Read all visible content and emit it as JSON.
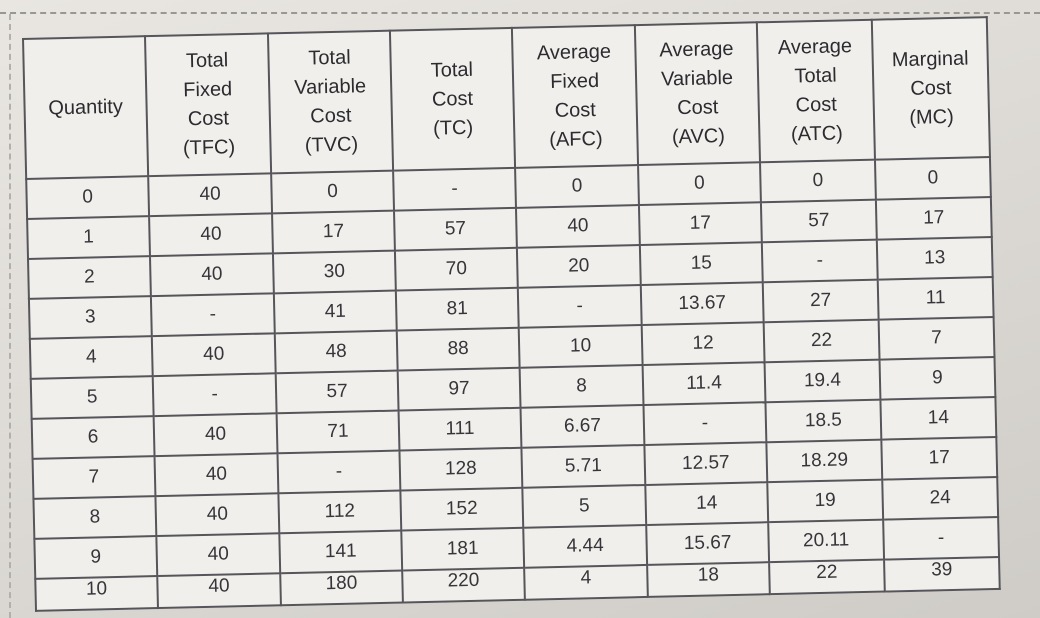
{
  "table": {
    "headers": [
      [
        "Quantity"
      ],
      [
        "Total",
        "Fixed",
        "Cost",
        "(TFC)"
      ],
      [
        "Total",
        "Variable",
        "Cost",
        "(TVC)"
      ],
      [
        "Total",
        "Cost",
        "(TC)"
      ],
      [
        "Average",
        "Fixed",
        "Cost",
        "(AFC)"
      ],
      [
        "Average",
        "Variable",
        "Cost",
        "(AVC)"
      ],
      [
        "Average",
        "Total",
        "Cost",
        "(ATC)"
      ],
      [
        "Marginal",
        "Cost",
        "(MC)"
      ]
    ],
    "rows": [
      [
        "0",
        "40",
        "0",
        "-",
        "0",
        "0",
        "0",
        "0"
      ],
      [
        "1",
        "40",
        "17",
        "57",
        "40",
        "17",
        "57",
        "17"
      ],
      [
        "2",
        "40",
        "30",
        "70",
        "20",
        "15",
        "-",
        "13"
      ],
      [
        "3",
        "-",
        "41",
        "81",
        "-",
        "13.67",
        "27",
        "11"
      ],
      [
        "4",
        "40",
        "48",
        "88",
        "10",
        "12",
        "22",
        "7"
      ],
      [
        "5",
        "-",
        "57",
        "97",
        "8",
        "11.4",
        "19.4",
        "9"
      ],
      [
        "6",
        "40",
        "71",
        "111",
        "6.67",
        "-",
        "18.5",
        "14"
      ],
      [
        "7",
        "40",
        "-",
        "128",
        "5.71",
        "12.57",
        "18.29",
        "17"
      ],
      [
        "8",
        "40",
        "112",
        "152",
        "5",
        "14",
        "19",
        "24"
      ],
      [
        "9",
        "40",
        "141",
        "181",
        "4.44",
        "15.67",
        "20.11",
        "-"
      ],
      [
        "10",
        "40",
        "180",
        "220",
        "4",
        "18",
        "22",
        "39"
      ]
    ]
  }
}
